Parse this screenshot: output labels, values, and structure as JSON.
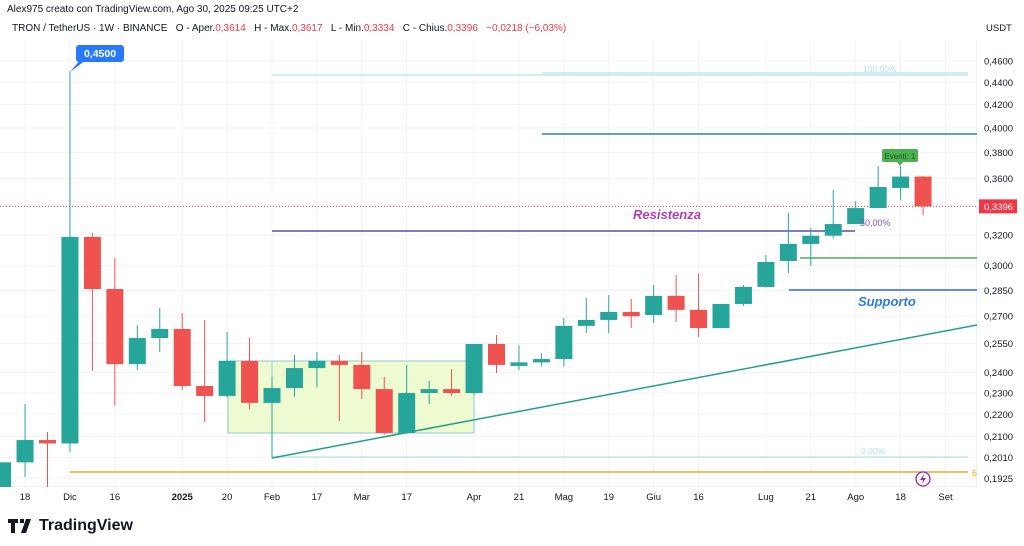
{
  "header": {
    "attribution": "Alex975 creato con TradingView.com, Ago 30, 2025 09:25 UTC+2",
    "symbol": "TRON / TetherUS · 1W · BINANCE",
    "open_label": "O - Aper.",
    "open": "0,3614",
    "high_label": "H - Max.",
    "high": "0,3617",
    "low_label": "L - Min.",
    "low": "0,3334",
    "close_label": "C - Chius.",
    "close": "0,3396",
    "change": "−0,0218 (−6,03%)"
  },
  "colors": {
    "up": "#26a69a",
    "down": "#ef5350",
    "resistance": "#5b4fa8",
    "support": "#2962ff",
    "accent": "#2979ff"
  },
  "annotations": {
    "high_tooltip": "0,4500",
    "resistance": "Resistenza",
    "support": "Supporto",
    "fib_100": "100,00%",
    "fib_50": "50,00%",
    "fib_0": "0,00%",
    "orange_label": "6",
    "events": "Eventi: 1",
    "current_price": "0,3396"
  },
  "chart_data": {
    "type": "candlestick",
    "title": "TRON / TetherUS · 1W · BINANCE",
    "ylabel": "USDT",
    "yscale": "log",
    "ylim": [
      0.188,
      0.47
    ],
    "grid": true,
    "y_ticks": [
      "0,4600",
      "0,4400",
      "0,4200",
      "0,4000",
      "0,3800",
      "0,3600",
      "0,3200",
      "0,3000",
      "0,2850",
      "0,2700",
      "0,2550",
      "0,2400",
      "0,2300",
      "0,2200",
      "0,2100",
      "0,2010",
      "0,1925"
    ],
    "y_tick_values": [
      0.46,
      0.44,
      0.42,
      0.4,
      0.38,
      0.36,
      0.32,
      0.3,
      0.285,
      0.27,
      0.255,
      0.24,
      0.23,
      0.22,
      0.21,
      0.201,
      0.1925
    ],
    "x_ticks": [
      "18",
      "Dic",
      "16",
      "2025",
      "20",
      "Feb",
      "17",
      "Mar",
      "17",
      "Apr",
      "21",
      "Mag",
      "19",
      "Giu",
      "16",
      "Lug",
      "21",
      "Ago",
      "18",
      "Set"
    ],
    "candles": [
      {
        "o": 0.189,
        "h": 0.199,
        "l": 0.189,
        "c": 0.199
      },
      {
        "o": 0.199,
        "h": 0.2248,
        "l": 0.193,
        "c": 0.2085
      },
      {
        "o": 0.2085,
        "h": 0.212,
        "l": 0.189,
        "c": 0.207
      },
      {
        "o": 0.207,
        "h": 0.45,
        "l": 0.2034,
        "c": 0.3186
      },
      {
        "o": 0.3186,
        "h": 0.3213,
        "l": 0.2408,
        "c": 0.2858
      },
      {
        "o": 0.2858,
        "h": 0.305,
        "l": 0.224,
        "c": 0.2443
      },
      {
        "o": 0.2443,
        "h": 0.265,
        "l": 0.2412,
        "c": 0.258
      },
      {
        "o": 0.258,
        "h": 0.2746,
        "l": 0.2506,
        "c": 0.2629
      },
      {
        "o": 0.2629,
        "h": 0.2718,
        "l": 0.2315,
        "c": 0.2334
      },
      {
        "o": 0.2334,
        "h": 0.2679,
        "l": 0.2165,
        "c": 0.2286
      },
      {
        "o": 0.2286,
        "h": 0.2612,
        "l": 0.228,
        "c": 0.246
      },
      {
        "o": 0.246,
        "h": 0.258,
        "l": 0.2225,
        "c": 0.2253
      },
      {
        "o": 0.2253,
        "h": 0.2378,
        "l": 0.2008,
        "c": 0.2324
      },
      {
        "o": 0.2324,
        "h": 0.249,
        "l": 0.2282,
        "c": 0.2423
      },
      {
        "o": 0.2423,
        "h": 0.2506,
        "l": 0.2327,
        "c": 0.246
      },
      {
        "o": 0.246,
        "h": 0.249,
        "l": 0.2169,
        "c": 0.2439
      },
      {
        "o": 0.2439,
        "h": 0.2506,
        "l": 0.2271,
        "c": 0.2319
      },
      {
        "o": 0.2319,
        "h": 0.2378,
        "l": 0.2108,
        "c": 0.2116
      },
      {
        "o": 0.2116,
        "h": 0.2439,
        "l": 0.2112,
        "c": 0.23
      },
      {
        "o": 0.23,
        "h": 0.2359,
        "l": 0.2248,
        "c": 0.2319
      },
      {
        "o": 0.2319,
        "h": 0.2418,
        "l": 0.2286,
        "c": 0.23
      },
      {
        "o": 0.23,
        "h": 0.2548,
        "l": 0.229,
        "c": 0.2548
      },
      {
        "o": 0.2548,
        "h": 0.2596,
        "l": 0.2398,
        "c": 0.2439
      },
      {
        "o": 0.2434,
        "h": 0.2542,
        "l": 0.2412,
        "c": 0.2452
      },
      {
        "o": 0.2452,
        "h": 0.25,
        "l": 0.243,
        "c": 0.2469
      },
      {
        "o": 0.2469,
        "h": 0.269,
        "l": 0.243,
        "c": 0.2646
      },
      {
        "o": 0.2646,
        "h": 0.2805,
        "l": 0.2607,
        "c": 0.2679
      },
      {
        "o": 0.2679,
        "h": 0.2822,
        "l": 0.2607,
        "c": 0.2724
      },
      {
        "o": 0.2724,
        "h": 0.2799,
        "l": 0.2634,
        "c": 0.27
      },
      {
        "o": 0.2707,
        "h": 0.2882,
        "l": 0.2662,
        "c": 0.2817
      },
      {
        "o": 0.2817,
        "h": 0.2943,
        "l": 0.2668,
        "c": 0.2736
      },
      {
        "o": 0.2736,
        "h": 0.2952,
        "l": 0.2585,
        "c": 0.2634
      },
      {
        "o": 0.2634,
        "h": 0.277,
        "l": 0.2634,
        "c": 0.277
      },
      {
        "o": 0.277,
        "h": 0.2882,
        "l": 0.2759,
        "c": 0.287
      },
      {
        "o": 0.287,
        "h": 0.3068,
        "l": 0.2865,
        "c": 0.3024
      },
      {
        "o": 0.303,
        "h": 0.335,
        "l": 0.2955,
        "c": 0.314
      },
      {
        "o": 0.314,
        "h": 0.3246,
        "l": 0.3,
        "c": 0.3194
      },
      {
        "o": 0.3194,
        "h": 0.3514,
        "l": 0.318,
        "c": 0.3273
      },
      {
        "o": 0.3273,
        "h": 0.3434,
        "l": 0.3273,
        "c": 0.3384
      },
      {
        "o": 0.3384,
        "h": 0.3695,
        "l": 0.3384,
        "c": 0.3536
      },
      {
        "o": 0.3529,
        "h": 0.3693,
        "l": 0.344,
        "c": 0.3614
      },
      {
        "o": 0.3614,
        "h": 0.3617,
        "l": 0.3334,
        "c": 0.3396
      }
    ]
  },
  "footer": {
    "brand": "TradingView"
  }
}
